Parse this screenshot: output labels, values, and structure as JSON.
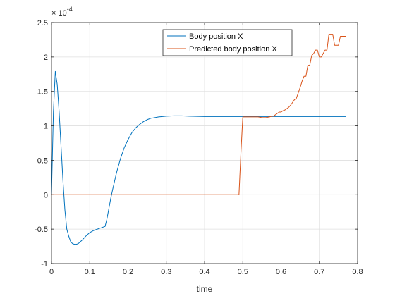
{
  "chart_data": {
    "type": "line",
    "title": "",
    "xlabel": "time",
    "ylabel": "",
    "y_exponent": "×10^{-4}",
    "y_exponent_base": "× 10",
    "y_exponent_power": "-4",
    "xlim": [
      0,
      0.8
    ],
    "ylim": [
      -1,
      2.5
    ],
    "xticks": [
      0,
      0.1,
      0.2,
      0.3,
      0.4,
      0.5,
      0.6,
      0.7,
      0.8
    ],
    "xtick_labels": [
      "0",
      "0.1",
      "0.2",
      "0.3",
      "0.4",
      "0.5",
      "0.6",
      "0.7",
      "0.8"
    ],
    "yticks": [
      -1,
      -0.5,
      0,
      0.5,
      1,
      1.5,
      2,
      2.5
    ],
    "ytick_labels": [
      "-1",
      "-0.5",
      "0",
      "0.5",
      "1",
      "1.5",
      "2",
      "2.5"
    ],
    "grid": true,
    "legend_position": "top-center",
    "series": [
      {
        "name": "Body position X",
        "color": "#0072BD",
        "x": [
          0,
          0.005,
          0.01,
          0.015,
          0.02,
          0.025,
          0.03,
          0.035,
          0.04,
          0.045,
          0.05,
          0.055,
          0.06,
          0.065,
          0.07,
          0.08,
          0.09,
          0.1,
          0.11,
          0.12,
          0.13,
          0.14,
          0.145,
          0.15,
          0.155,
          0.16,
          0.165,
          0.17,
          0.18,
          0.19,
          0.2,
          0.21,
          0.22,
          0.23,
          0.24,
          0.25,
          0.26,
          0.27,
          0.28,
          0.29,
          0.3,
          0.32,
          0.34,
          0.36,
          0.4,
          0.5,
          0.6,
          0.7,
          0.77
        ],
        "y": [
          0,
          1.2,
          1.79,
          1.6,
          1.2,
          0.7,
          0.2,
          -0.22,
          -0.5,
          -0.6,
          -0.68,
          -0.71,
          -0.72,
          -0.72,
          -0.71,
          -0.66,
          -0.6,
          -0.55,
          -0.52,
          -0.5,
          -0.48,
          -0.46,
          -0.35,
          -0.2,
          -0.05,
          0.08,
          0.2,
          0.32,
          0.52,
          0.68,
          0.8,
          0.9,
          0.97,
          1.02,
          1.06,
          1.09,
          1.11,
          1.12,
          1.13,
          1.135,
          1.14,
          1.145,
          1.145,
          1.14,
          1.135,
          1.135,
          1.135,
          1.135,
          1.135
        ]
      },
      {
        "name": "Predicted body position X",
        "color": "#D95319",
        "x": [
          0,
          0.3,
          0.49,
          0.495,
          0.5,
          0.54,
          0.55,
          0.56,
          0.57,
          0.575,
          0.58,
          0.585,
          0.59,
          0.595,
          0.6,
          0.605,
          0.61,
          0.615,
          0.62,
          0.625,
          0.63,
          0.635,
          0.64,
          0.645,
          0.65,
          0.655,
          0.66,
          0.665,
          0.67,
          0.675,
          0.68,
          0.685,
          0.69,
          0.695,
          0.7,
          0.705,
          0.71,
          0.715,
          0.72,
          0.725,
          0.73,
          0.735,
          0.74,
          0.745,
          0.75,
          0.755,
          0.76,
          0.765,
          0.77
        ],
        "y": [
          0,
          0,
          0,
          0.6,
          1.13,
          1.13,
          1.12,
          1.12,
          1.13,
          1.14,
          1.14,
          1.16,
          1.18,
          1.2,
          1.2,
          1.22,
          1.23,
          1.25,
          1.27,
          1.3,
          1.34,
          1.38,
          1.4,
          1.48,
          1.56,
          1.65,
          1.72,
          1.72,
          1.88,
          1.88,
          2.02,
          2.05,
          2.1,
          2.1,
          2.0,
          2.0,
          2.05,
          2.1,
          2.1,
          2.33,
          2.33,
          2.33,
          2.17,
          2.17,
          2.17,
          2.3,
          2.3,
          2.3,
          2.3
        ]
      }
    ]
  }
}
